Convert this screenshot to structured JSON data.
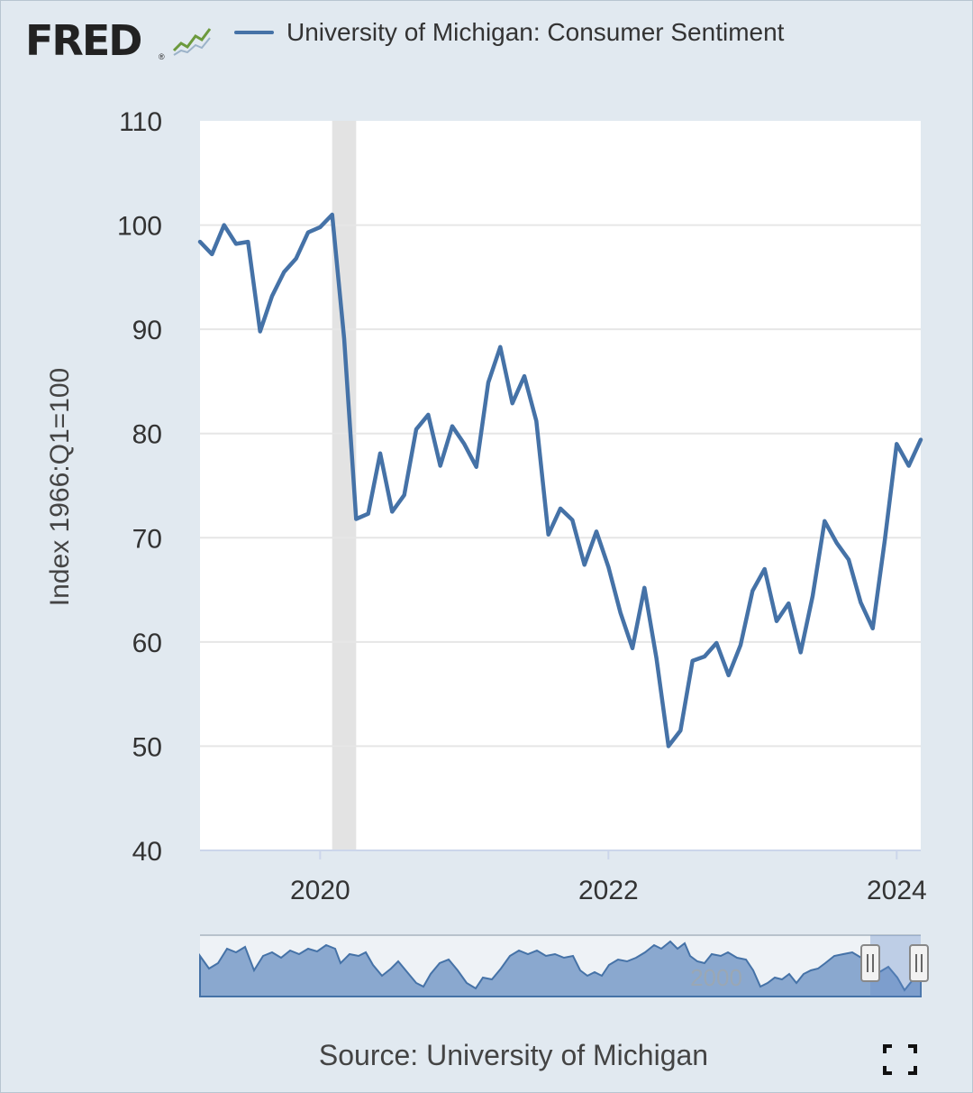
{
  "brand": {
    "logo_text": "FRED",
    "registered_mark": "®",
    "logo_icon": "trend-line-icon"
  },
  "legend": {
    "label": "University of Michigan: Consumer Sentiment",
    "color": "#4572a7"
  },
  "source_text": "Source: University of Michigan",
  "navigator": {
    "label": "2000"
  },
  "colors": {
    "series": "#4572a7",
    "recession_band": "#e3e3e3",
    "plot_bg": "#ffffff",
    "page_bg": "#e1e9f0",
    "navigator_fill": "#8aa8cf"
  },
  "chart_data": {
    "type": "line",
    "title": "",
    "xlabel": "",
    "ylabel": "Index 1966:Q1=100",
    "ylim": [
      40,
      110
    ],
    "yticks": [
      40,
      50,
      60,
      70,
      80,
      90,
      100,
      110
    ],
    "xlim": [
      "2019-03",
      "2024-03"
    ],
    "xticks": [
      {
        "label": "2020",
        "date": "2020-01"
      },
      {
        "label": "2022",
        "date": "2022-01"
      },
      {
        "label": "2024",
        "date": "2024-01"
      }
    ],
    "grid": true,
    "legend_position": "top",
    "recessions": [
      {
        "start": "2020-02",
        "end": "2020-04"
      }
    ],
    "series": [
      {
        "name": "University of Michigan: Consumer Sentiment",
        "color": "#4572a7",
        "points": [
          [
            "2019-03",
            98.4
          ],
          [
            "2019-04",
            97.2
          ],
          [
            "2019-05",
            100.0
          ],
          [
            "2019-06",
            98.2
          ],
          [
            "2019-07",
            98.4
          ],
          [
            "2019-08",
            89.8
          ],
          [
            "2019-09",
            93.2
          ],
          [
            "2019-10",
            95.5
          ],
          [
            "2019-11",
            96.8
          ],
          [
            "2019-12",
            99.3
          ],
          [
            "2020-01",
            99.8
          ],
          [
            "2020-02",
            101.0
          ],
          [
            "2020-03",
            89.1
          ],
          [
            "2020-04",
            71.8
          ],
          [
            "2020-05",
            72.3
          ],
          [
            "2020-06",
            78.1
          ],
          [
            "2020-07",
            72.5
          ],
          [
            "2020-08",
            74.1
          ],
          [
            "2020-09",
            80.4
          ],
          [
            "2020-10",
            81.8
          ],
          [
            "2020-11",
            76.9
          ],
          [
            "2020-12",
            80.7
          ],
          [
            "2021-01",
            79.0
          ],
          [
            "2021-02",
            76.8
          ],
          [
            "2021-03",
            84.9
          ],
          [
            "2021-04",
            88.3
          ],
          [
            "2021-05",
            82.9
          ],
          [
            "2021-06",
            85.5
          ],
          [
            "2021-07",
            81.2
          ],
          [
            "2021-08",
            70.3
          ],
          [
            "2021-09",
            72.8
          ],
          [
            "2021-10",
            71.7
          ],
          [
            "2021-11",
            67.4
          ],
          [
            "2021-12",
            70.6
          ],
          [
            "2022-01",
            67.2
          ],
          [
            "2022-02",
            62.8
          ],
          [
            "2022-03",
            59.4
          ],
          [
            "2022-04",
            65.2
          ],
          [
            "2022-05",
            58.4
          ],
          [
            "2022-06",
            50.0
          ],
          [
            "2022-07",
            51.5
          ],
          [
            "2022-08",
            58.2
          ],
          [
            "2022-09",
            58.6
          ],
          [
            "2022-10",
            59.9
          ],
          [
            "2022-11",
            56.8
          ],
          [
            "2022-12",
            59.7
          ],
          [
            "2023-01",
            64.9
          ],
          [
            "2023-02",
            67.0
          ],
          [
            "2023-03",
            62.0
          ],
          [
            "2023-04",
            63.7
          ],
          [
            "2023-05",
            59.0
          ],
          [
            "2023-06",
            64.4
          ],
          [
            "2023-07",
            71.6
          ],
          [
            "2023-08",
            69.5
          ],
          [
            "2023-09",
            67.9
          ],
          [
            "2023-10",
            63.8
          ],
          [
            "2023-11",
            61.3
          ],
          [
            "2023-12",
            69.7
          ],
          [
            "2024-01",
            79.0
          ],
          [
            "2024-02",
            76.9
          ],
          [
            "2024-03",
            79.4
          ]
        ]
      }
    ]
  }
}
